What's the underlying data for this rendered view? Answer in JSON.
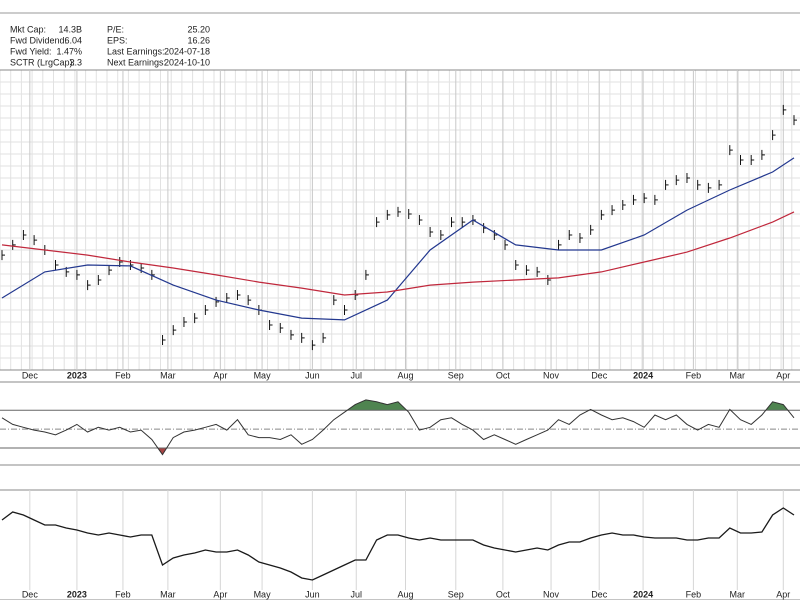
{
  "info": [
    {
      "label": "Mkt Cap:",
      "value": "14.3B"
    },
    {
      "label": "Fwd Dividend:",
      "value": "6.04"
    },
    {
      "label": "Fwd Yield:",
      "value": "1.47%"
    },
    {
      "label": "SCTR (LrgCap):",
      "value": "3.3"
    },
    {
      "label": "P/E:",
      "value": "25.20"
    },
    {
      "label": "EPS:",
      "value": "16.26"
    },
    {
      "label": "Last Earnings:",
      "value": "2024-07-18"
    },
    {
      "label": "Next Earnings:",
      "value": "2024-10-10"
    }
  ],
  "chart_data": [
    {
      "type": "price",
      "xlim": [
        0,
        74
      ],
      "ylim": [
        0,
        100
      ],
      "grid": true,
      "xticks": [
        {
          "value": 2.6,
          "label": "Dec"
        },
        {
          "value": 7.0,
          "label": "2023"
        },
        {
          "value": 11.3,
          "label": "Feb"
        },
        {
          "value": 15.5,
          "label": "Mar"
        },
        {
          "value": 20.4,
          "label": "Apr"
        },
        {
          "value": 24.3,
          "label": "May"
        },
        {
          "value": 29.0,
          "label": "Jun"
        },
        {
          "value": 33.1,
          "label": "Jul"
        },
        {
          "value": 37.7,
          "label": "Aug"
        },
        {
          "value": 42.4,
          "label": "Sep"
        },
        {
          "value": 46.8,
          "label": "Oct"
        },
        {
          "value": 51.3,
          "label": "Nov"
        },
        {
          "value": 55.8,
          "label": "Dec"
        },
        {
          "value": 59.9,
          "label": "2024"
        },
        {
          "value": 64.6,
          "label": "Feb"
        },
        {
          "value": 68.7,
          "label": "Mar"
        },
        {
          "value": 73.0,
          "label": "Apr"
        }
      ],
      "series": [
        {
          "color": "#111111",
          "values": [
            38.3,
            41.7,
            45,
            43.3,
            40,
            35,
            32.7,
            31.7,
            28.3,
            30,
            33.3,
            36,
            35,
            34,
            31.7,
            10,
            13.3,
            16,
            17.3,
            20,
            22.7,
            24,
            25,
            23.3,
            20,
            15,
            14,
            11.7,
            10.7,
            8.3,
            10.7,
            23.3,
            20,
            25,
            31.7,
            49.3,
            51.7,
            52.7,
            52,
            50,
            46,
            45,
            49.3,
            49.3,
            50,
            47.3,
            45,
            41.7,
            35,
            33.3,
            32.7,
            30,
            41.7,
            45,
            44,
            46.7,
            51.7,
            53.3,
            55,
            56.7,
            57.3,
            56.7,
            61.7,
            63.3,
            64,
            61.7,
            60.7,
            61.7,
            73.3,
            70,
            70,
            71.7,
            78.3,
            86.7,
            83.3
          ]
        },
        {
          "color": "#23388f",
          "x": [
            0,
            4,
            8,
            12,
            16,
            20,
            24,
            28,
            32,
            36,
            40,
            44,
            48,
            52,
            56,
            60,
            64,
            68,
            72,
            74
          ],
          "values": [
            24,
            32.7,
            35,
            34.7,
            28.3,
            23.3,
            20,
            17.3,
            16.7,
            23.3,
            40,
            50,
            41.7,
            40,
            40,
            45,
            53.3,
            60,
            66,
            70.7
          ]
        },
        {
          "color": "#c0283c",
          "x": [
            0,
            4,
            8,
            12,
            16,
            20,
            24,
            28,
            32,
            36,
            40,
            44,
            48,
            52,
            56,
            60,
            64,
            68,
            72,
            74
          ],
          "values": [
            41.7,
            40,
            38.3,
            36,
            34,
            31.7,
            29.3,
            27.3,
            25,
            26,
            28.3,
            29.3,
            30,
            30.7,
            32.7,
            36,
            39.3,
            44,
            49.3,
            52.7
          ]
        }
      ]
    },
    {
      "type": "rsi",
      "xlim": [
        0,
        74
      ],
      "ylim": [
        12,
        100
      ],
      "overbought": 70,
      "midline": 50,
      "oversold": 30,
      "color": "#333333",
      "overbought_color": "#4f8450",
      "oversold_color": "#a84545",
      "values": [
        62,
        55,
        52,
        49,
        47,
        44,
        49,
        55,
        47,
        52,
        49,
        52,
        47,
        49,
        39,
        23,
        41,
        47,
        49,
        52,
        55,
        49,
        60,
        44,
        41,
        41,
        39,
        44,
        34,
        39,
        49,
        60,
        68,
        76,
        81,
        79,
        76,
        79,
        68,
        49,
        52,
        60,
        62,
        55,
        49,
        39,
        44,
        39,
        34,
        39,
        44,
        49,
        60,
        55,
        65,
        71,
        65,
        60,
        62,
        58,
        52,
        65,
        60,
        65,
        55,
        49,
        55,
        52,
        71,
        60,
        55,
        65,
        79,
        76,
        62
      ]
    },
    {
      "type": "line",
      "xlim": [
        0,
        74
      ],
      "ylim": [
        0,
        110
      ],
      "color": "#1a1a1a",
      "values": [
        80,
        88,
        85,
        80,
        75,
        75,
        72,
        70,
        67,
        65,
        67,
        65,
        63,
        65,
        65,
        35,
        42,
        45,
        47,
        50,
        48,
        48,
        50,
        45,
        38,
        35,
        32,
        28,
        22,
        20,
        25,
        30,
        35,
        40,
        40,
        60,
        65,
        65,
        62,
        60,
        62,
        60,
        60,
        60,
        60,
        55,
        52,
        50,
        48,
        50,
        52,
        50,
        55,
        58,
        58,
        62,
        65,
        67,
        65,
        65,
        63,
        62,
        62,
        62,
        60,
        60,
        62,
        62,
        72,
        67,
        67,
        68,
        85,
        92,
        85
      ]
    }
  ]
}
